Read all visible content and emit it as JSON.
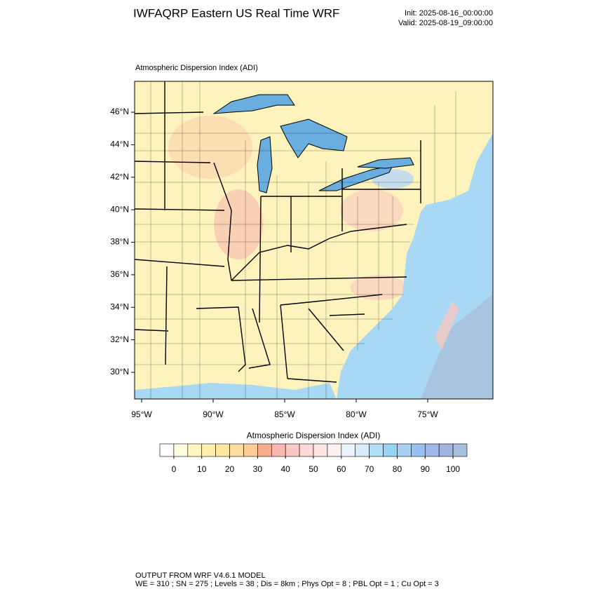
{
  "header": {
    "title": "IWFAQRP Eastern US Real Time WRF",
    "init": "Init: 2025-08-16_00:00:00",
    "valid": "Valid: 2025-08-19_09:00:00"
  },
  "map": {
    "subtitle": "Atmospheric Dispersion Index   (ADI)",
    "latlim": [
      28.36,
      47.9
    ],
    "lonlim": [
      -95.49,
      -70.44
    ],
    "lat_ticks": [
      {
        "value": 30,
        "label": "30°N"
      },
      {
        "value": 32,
        "label": "32°N"
      },
      {
        "value": 34,
        "label": "34°N"
      },
      {
        "value": 36,
        "label": "36°N"
      },
      {
        "value": 38,
        "label": "38°N"
      },
      {
        "value": 40,
        "label": "40°N"
      },
      {
        "value": 42,
        "label": "42°N"
      },
      {
        "value": 44,
        "label": "44°N"
      },
      {
        "value": 46,
        "label": "46°N"
      }
    ],
    "lon_ticks": [
      {
        "value": -95,
        "label": "95°W"
      },
      {
        "value": -90,
        "label": "90°W"
      },
      {
        "value": -85,
        "label": "85°W"
      },
      {
        "value": -80,
        "label": "80°W"
      },
      {
        "value": -75,
        "label": "75°W"
      }
    ]
  },
  "colorbar": {
    "title": "Atmospheric Dispersion Index  (ADI)",
    "range": [
      -5,
      105
    ],
    "ticks": [
      0,
      10,
      20,
      30,
      40,
      50,
      60,
      70,
      80,
      90,
      100
    ],
    "colors": [
      "#ffffff",
      "#fffde0",
      "#fff6c4",
      "#ffefb0",
      "#ffe8a0",
      "#ffdca0",
      "#ffcc99",
      "#f8ae8e",
      "#f6b8b0",
      "#f8c8c4",
      "#fcd8d6",
      "#fde6e4",
      "#fdf0f0",
      "#eef2fc",
      "#d8ecfc",
      "#b0e0f8",
      "#98d4f4",
      "#a8d0f0",
      "#98c0f0",
      "#a0b8ec",
      "#a0b4e0",
      "#a4c0dc"
    ]
  },
  "footer": {
    "line1": "OUTPUT FROM WRF V4.6.1 MODEL",
    "line2": "WE = 310 ; SN = 275 ; Levels = 38 ; Dis = 8km ; Phys Opt = 8 ; PBL Opt = 1 ; Cu Opt = 3"
  }
}
